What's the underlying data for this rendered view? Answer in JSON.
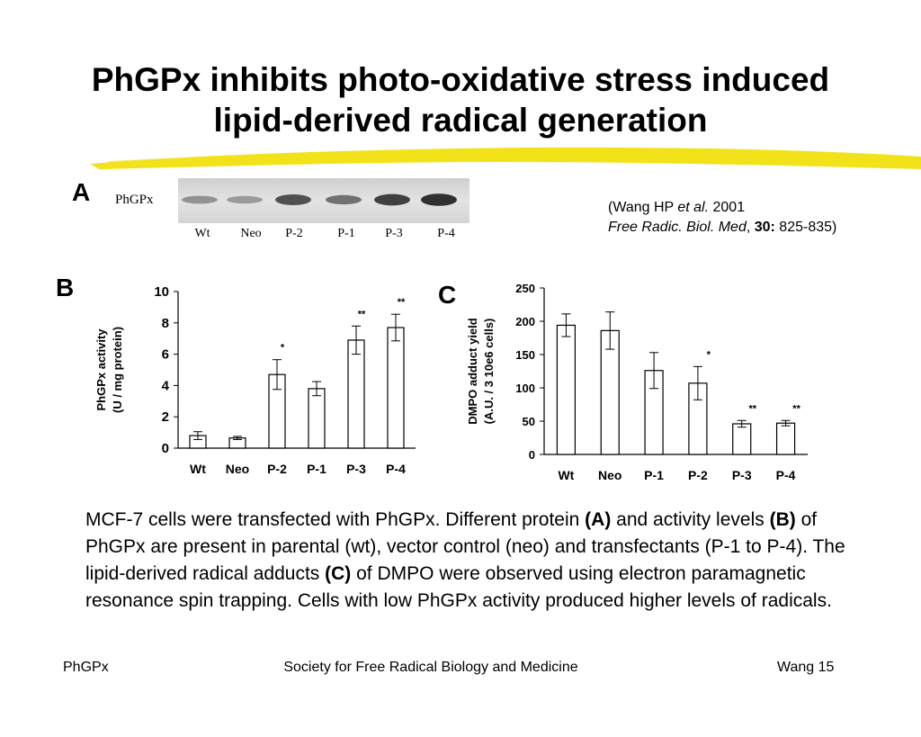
{
  "slide": {
    "title_line1": "PhGPx inhibits photo-oxidative stress induced",
    "title_line2": "lipid-derived radical generation",
    "accent_color": "#f2e21a"
  },
  "panel_a": {
    "letter": "A",
    "blot_label": "PhGPx",
    "lanes": [
      "Wt",
      "Neo",
      "P-2",
      "P-1",
      "P-3",
      "P-4"
    ],
    "band_intensity": [
      0.35,
      0.3,
      0.75,
      0.55,
      0.85,
      0.95
    ]
  },
  "citation": {
    "open": "(",
    "author": "Wang HP ",
    "etal": "et al.",
    "year": " 2001",
    "journal": "Free Radic. Biol. Med",
    "comma": ", ",
    "volume": "30:",
    "pages": " 825-835)"
  },
  "panel_b_letter": "B",
  "panel_c_letter": "C",
  "chart_data": [
    {
      "type": "bar",
      "panel": "B",
      "categories": [
        "Wt",
        "Neo",
        "P-2",
        "P-1",
        "P-3",
        "P-4"
      ],
      "values": [
        0.8,
        0.65,
        4.7,
        3.8,
        6.9,
        7.7
      ],
      "errors": [
        0.25,
        0.1,
        0.95,
        0.45,
        0.9,
        0.85
      ],
      "significance": [
        "",
        "",
        "*",
        "",
        "**",
        "**"
      ],
      "ylabel_line1": "PhGPx activity",
      "ylabel_line2": "(U / mg protein)",
      "xlabel": "",
      "ylim": [
        0,
        10
      ],
      "yticks": [
        0,
        2,
        4,
        6,
        8,
        10
      ],
      "grid": false
    },
    {
      "type": "bar",
      "panel": "C",
      "categories": [
        "Wt",
        "Neo",
        "P-1",
        "P-2",
        "P-3",
        "P-4"
      ],
      "values": [
        194,
        186,
        126,
        107,
        46,
        47
      ],
      "errors": [
        17,
        28,
        27,
        25,
        5,
        4
      ],
      "significance": [
        "",
        "",
        "",
        "*",
        "**",
        "**"
      ],
      "ylabel_line1": "DMPO adduct yield",
      "ylabel_line2": "(A.U. / 3 10e6 cells)",
      "xlabel": "",
      "ylim": [
        0,
        250
      ],
      "yticks": [
        0,
        50,
        100,
        150,
        200,
        250
      ],
      "grid": false
    }
  ],
  "caption": {
    "t1": "MCF-7 cells were transfected with PhGPx.  Different protein ",
    "b1": "(A)",
    "t2": " and activity levels ",
    "b2": "(B)",
    "t3": " of PhGPx are present in parental (wt), vector control (neo) and transfectants (P-1 to P-4).  The lipid-derived radical adducts ",
    "b3": "(C)",
    "t4": " of DMPO were observed using electron paramagnetic resonance spin trapping. Cells with low PhGPx activity produced higher levels of radicals."
  },
  "footer": {
    "left": "PhGPx",
    "center": "Society for Free Radical Biology and Medicine",
    "right": "Wang 15"
  }
}
